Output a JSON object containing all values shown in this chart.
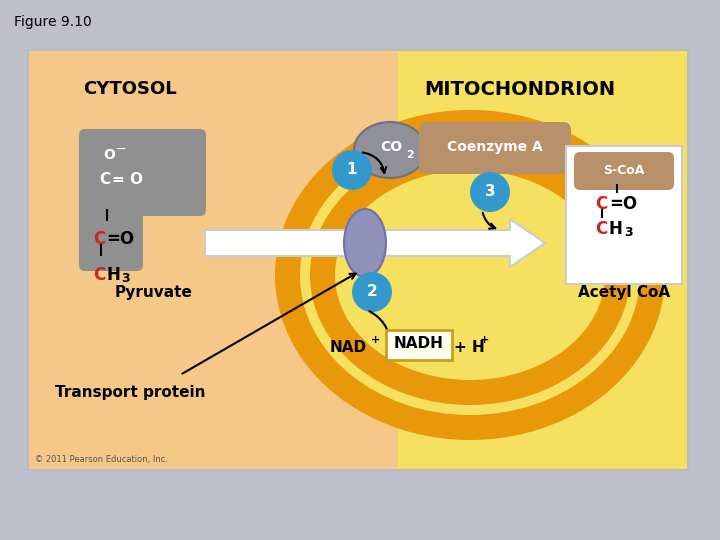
{
  "figure_label": "Figure 9.10",
  "bg_outer": "#c0c0cc",
  "bg_panel": "#faf0c0",
  "title_text": "MITOCHONDRION",
  "cytosol_text": "CYTOSOL",
  "co2_circle_color": "#909098",
  "coenzyme_text": "Coenzyme A",
  "coenzyme_box_color": "#b8956a",
  "soa_text": "S-CoA",
  "soa_box_color": "#b8956a",
  "step_color": "#3399cc",
  "transport_oval_color": "#9090bb",
  "pyruvate_text": "Pyruvate",
  "transport_text": "Transport protein",
  "acetyl_coa_text": "Acetyl CoA",
  "copyright": "© 2011 Pearson Education, Inc.",
  "mito_orange": "#e8900a",
  "mito_inner_yellow": "#f5e060",
  "cytosol_bg": "#f5d898",
  "panel_bg": "#f5e898"
}
